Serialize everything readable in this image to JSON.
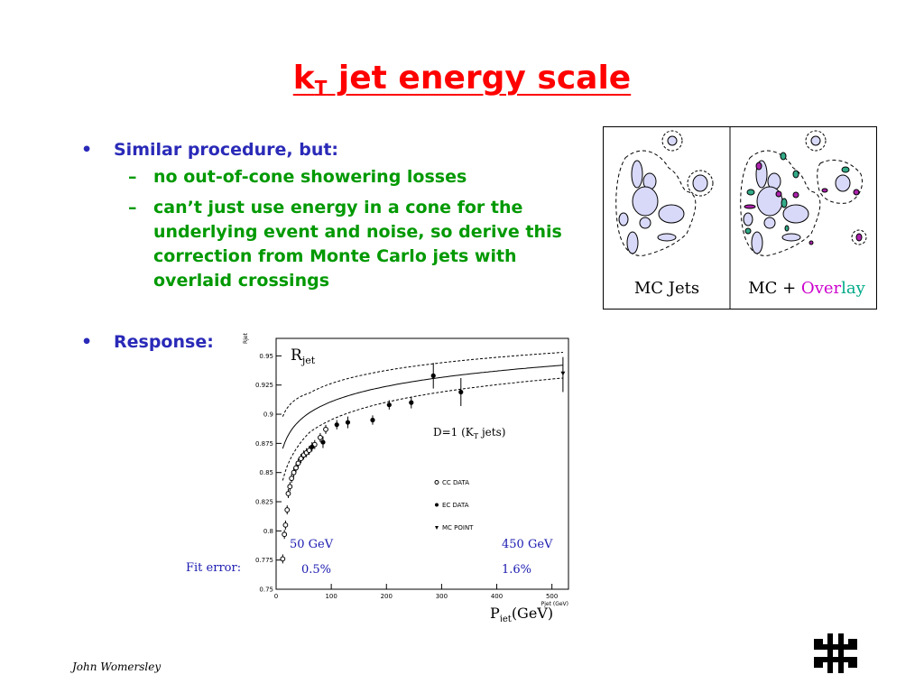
{
  "slide": {
    "title_main": "k",
    "title_sub": "T",
    "title_rest": " jet energy scale",
    "bullets": [
      {
        "text": "Similar procedure, but:"
      },
      {
        "text": "Response:"
      }
    ],
    "subbullets": [
      {
        "lines": [
          "no out-of-cone showering losses"
        ]
      },
      {
        "lines": [
          "can’t just use energy in a cone for the",
          "underlying event and noise, so derive this",
          "correction from Monte Carlo jets with",
          "overlaid crossings"
        ]
      }
    ],
    "bullet_mark": "•",
    "sub_mark": "–",
    "footer": "John Womersley"
  },
  "jet_figure": {
    "left_label": "MC Jets",
    "right_label_prefix": "MC + ",
    "overlay_word": [
      "O",
      "v",
      "e",
      "r",
      "l",
      "a",
      "y"
    ],
    "overlay_colors": [
      "#cc00cc",
      "#cc00cc",
      "#cc00cc",
      "#cc00cc",
      "#00aa88",
      "#00aa88",
      "#00aa88"
    ]
  },
  "chart_data": {
    "type": "scatter",
    "title": "Rjet",
    "title_main": "R",
    "title_sub": "jet",
    "ylabel_small": "Rjet",
    "xlabel_small": "Pjet (GeV)",
    "xlabel_main": "P",
    "xlabel_sub": "jet",
    "xlabel_unit": "(GeV)",
    "annotation_main": "D=1 (K",
    "annotation_sub": "T",
    "annotation_rest": " jets)",
    "xlim": [
      0,
      530
    ],
    "ylim": [
      0.75,
      0.965
    ],
    "xticks": [
      "0",
      "100",
      "200",
      "300",
      "400",
      "500"
    ],
    "xtick_values": [
      0,
      100,
      200,
      300,
      400,
      500
    ],
    "yticks": [
      "0.75",
      "0.775",
      "0.8",
      "0.825",
      "0.85",
      "0.875",
      "0.9",
      "0.925",
      "0.95"
    ],
    "ytick_values": [
      0.75,
      0.775,
      0.8,
      0.825,
      0.85,
      0.875,
      0.9,
      0.925,
      0.95
    ],
    "legend": [
      "CC DATA",
      "EC DATA",
      "MC POINT"
    ],
    "fit_label": "Fit error:",
    "fit_points": [
      {
        "energy": "50 GeV",
        "error": "0.5%"
      },
      {
        "energy": "450 GeV",
        "error": "1.6%"
      }
    ],
    "series": [
      {
        "name": "CC DATA",
        "x": [
          12,
          15,
          17,
          20,
          22,
          25,
          28,
          32,
          36,
          40,
          45,
          50,
          55,
          60,
          70,
          80,
          90
        ],
        "y": [
          0.776,
          0.797,
          0.805,
          0.818,
          0.832,
          0.838,
          0.845,
          0.85,
          0.854,
          0.858,
          0.862,
          0.865,
          0.867,
          0.869,
          0.874,
          0.88,
          0.887
        ]
      },
      {
        "name": "EC DATA",
        "x": [
          65,
          85,
          110,
          130,
          175,
          205,
          245,
          285,
          335
        ],
        "y": [
          0.872,
          0.876,
          0.891,
          0.893,
          0.895,
          0.908,
          0.91,
          0.933,
          0.919
        ]
      },
      {
        "name": "MC POINT",
        "x": [
          520
        ],
        "y": [
          0.935
        ]
      }
    ],
    "fit_curve": {
      "a": 0.8235,
      "b": 0.01895
    },
    "band_curve": {
      "a": 0.0282,
      "b": -0.00275
    }
  },
  "colors": {
    "title": "#ff0000",
    "bullet": "#2a2ab8",
    "sub": "#009900",
    "plot_blue": "#1a1ab0"
  }
}
